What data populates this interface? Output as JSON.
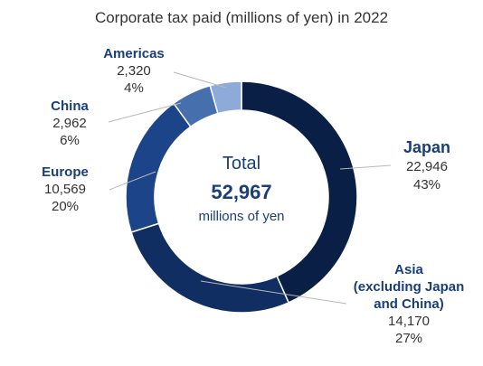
{
  "chart_data": {
    "type": "pie",
    "title": "Corporate tax paid (millions of yen) in 2022",
    "center": {
      "label": "Total",
      "value": "52,967",
      "unit": "millions of yen"
    },
    "slices": [
      {
        "lines": [
          "Japan"
        ],
        "value": 22946,
        "value_label": "22,946",
        "percent": "43%",
        "color": "#0a1f45"
      },
      {
        "lines": [
          "Asia",
          "(excluding Japan",
          "and China)"
        ],
        "value": 14170,
        "value_label": "14,170",
        "percent": "27%",
        "color": "#112e62"
      },
      {
        "lines": [
          "Europe"
        ],
        "value": 10569,
        "value_label": "10,569",
        "percent": "20%",
        "color": "#1b4489"
      },
      {
        "lines": [
          "China"
        ],
        "value": 2962,
        "value_label": "2,962",
        "percent": "6%",
        "color": "#466fad"
      },
      {
        "lines": [
          "Americas"
        ],
        "value": 2320,
        "value_label": "2,320",
        "percent": "4%",
        "color": "#8eaad8"
      }
    ]
  }
}
